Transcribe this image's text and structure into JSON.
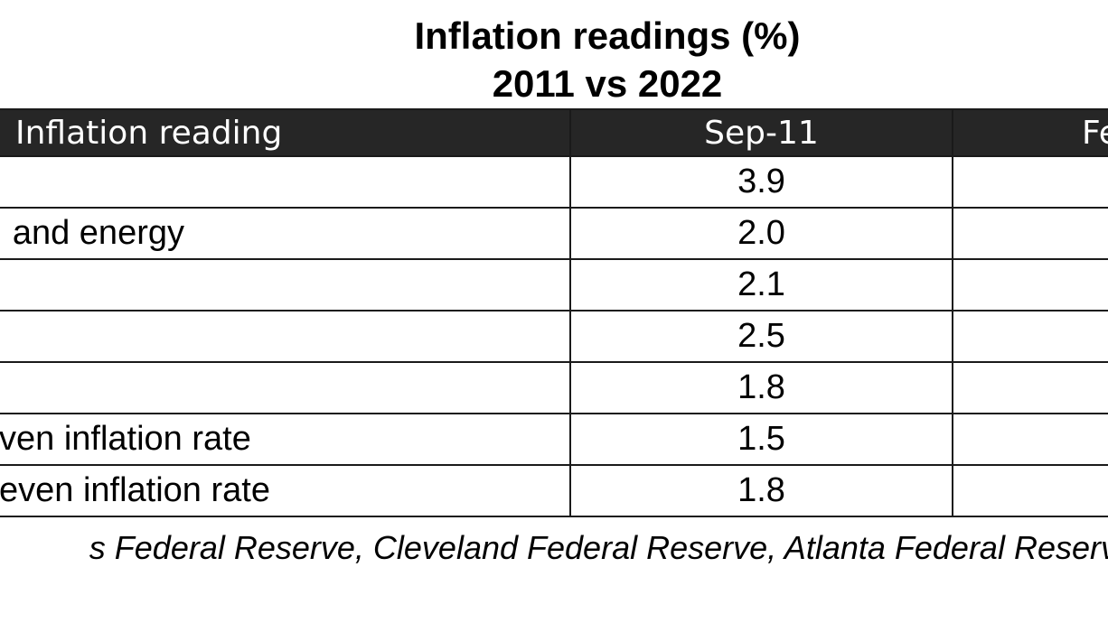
{
  "chart_data": {
    "type": "table",
    "title": "Inflation readings (%)",
    "subtitle": "2011 vs 2022",
    "columns": [
      "Inflation reading",
      "Sep-11",
      "Fe"
    ],
    "rows": [
      {
        "label": "",
        "value": "3.9"
      },
      {
        "label": "and energy",
        "value": "2.0"
      },
      {
        "label": "",
        "value": "2.1"
      },
      {
        "label": "",
        "value": "2.5"
      },
      {
        "label": "",
        "value": "1.8"
      },
      {
        "label": "ven inflation rate",
        "value": "1.5"
      },
      {
        "label": "even inflation rate",
        "value": "1.8"
      }
    ],
    "source": "s Federal Reserve, Cleveland Federal Reserve, Atlanta Federal Reserve"
  },
  "colors": {
    "header_bg": "#262626",
    "header_text": "#ffffff",
    "border": "#1a1a1a"
  }
}
